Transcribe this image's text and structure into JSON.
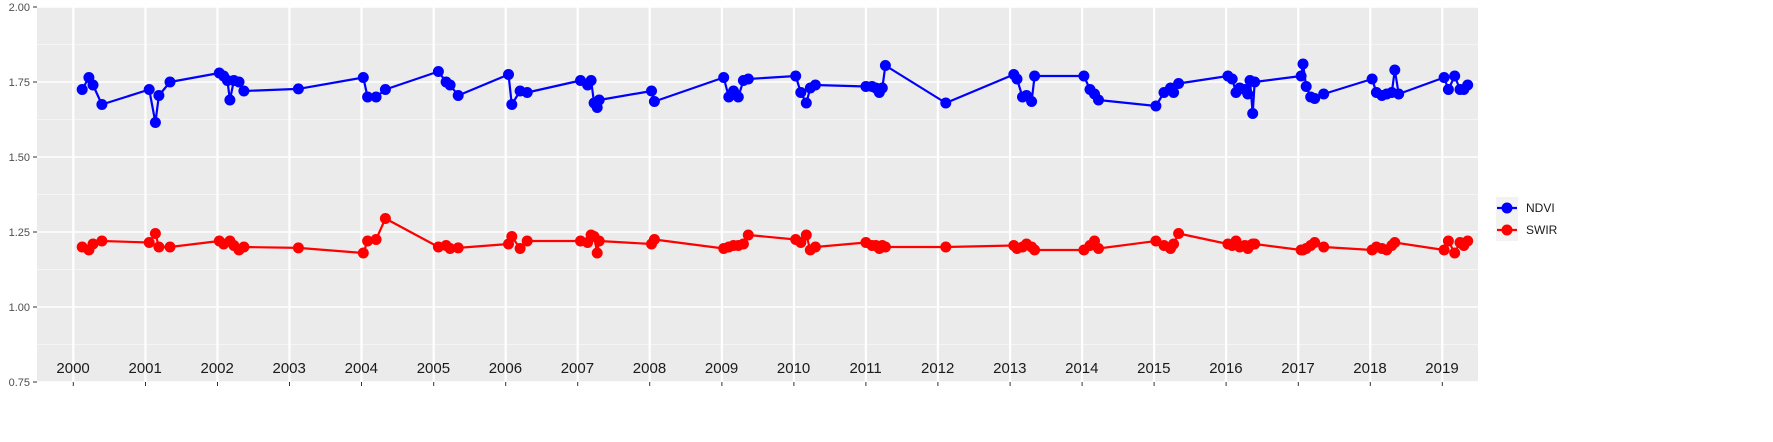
{
  "chart_data": {
    "type": "line",
    "x_axis": {
      "type": "time",
      "range": [
        "1999-07-01",
        "2019-07-01"
      ],
      "tick_labels_shown": false
    },
    "year_labels": [
      "2000",
      "2001",
      "2002",
      "2003",
      "2004",
      "2005",
      "2006",
      "2007",
      "2008",
      "2009",
      "2010",
      "2011",
      "2012",
      "2013",
      "2014",
      "2015",
      "2016",
      "2017",
      "2018",
      "2019"
    ],
    "y_axis": {
      "ylim": [
        0.75,
        2.0
      ],
      "ticks": [
        0.75,
        1.0,
        1.25,
        1.5,
        1.75,
        2.0
      ],
      "tick_labels": [
        "0.75",
        "1.00",
        "1.25",
        "1.50",
        "1.75",
        "2.00"
      ]
    },
    "grid": true,
    "background": "#ebebeb",
    "legend": {
      "position": "right",
      "entries": [
        "NDVI",
        "SWIR"
      ]
    },
    "series": [
      {
        "name": "NDVI",
        "color": "#0000ff",
        "points": [
          {
            "x": "2000-02-15",
            "y": 1.725
          },
          {
            "x": "2000-03-20",
            "y": 1.765
          },
          {
            "x": "2000-04-10",
            "y": 1.74
          },
          {
            "x": "2000-05-25",
            "y": 1.675
          },
          {
            "x": "2001-01-20",
            "y": 1.725
          },
          {
            "x": "2001-02-20",
            "y": 1.615
          },
          {
            "x": "2001-03-10",
            "y": 1.705
          },
          {
            "x": "2001-05-05",
            "y": 1.75
          },
          {
            "x": "2002-01-10",
            "y": 1.78
          },
          {
            "x": "2002-02-01",
            "y": 1.77
          },
          {
            "x": "2002-02-20",
            "y": 1.755
          },
          {
            "x": "2002-03-05",
            "y": 1.69
          },
          {
            "x": "2002-03-25",
            "y": 1.755
          },
          {
            "x": "2002-04-20",
            "y": 1.75
          },
          {
            "x": "2002-05-15",
            "y": 1.72
          },
          {
            "x": "2003-02-15",
            "y": 1.727
          },
          {
            "x": "2004-01-10",
            "y": 1.765
          },
          {
            "x": "2004-02-01",
            "y": 1.7
          },
          {
            "x": "2004-03-15",
            "y": 1.7
          },
          {
            "x": "2004-05-01",
            "y": 1.725
          },
          {
            "x": "2005-01-25",
            "y": 1.785
          },
          {
            "x": "2005-03-05",
            "y": 1.75
          },
          {
            "x": "2005-03-25",
            "y": 1.74
          },
          {
            "x": "2005-05-05",
            "y": 1.705
          },
          {
            "x": "2006-01-15",
            "y": 1.775
          },
          {
            "x": "2006-02-01",
            "y": 1.675
          },
          {
            "x": "2006-03-15",
            "y": 1.72
          },
          {
            "x": "2006-04-20",
            "y": 1.715
          },
          {
            "x": "2007-01-15",
            "y": 1.755
          },
          {
            "x": "2007-02-20",
            "y": 1.74
          },
          {
            "x": "2007-03-10",
            "y": 1.755
          },
          {
            "x": "2007-03-25",
            "y": 1.68
          },
          {
            "x": "2007-04-10",
            "y": 1.665
          },
          {
            "x": "2007-04-20",
            "y": 1.69
          },
          {
            "x": "2008-01-10",
            "y": 1.72
          },
          {
            "x": "2008-01-25",
            "y": 1.685
          },
          {
            "x": "2009-01-10",
            "y": 1.765
          },
          {
            "x": "2009-02-05",
            "y": 1.7
          },
          {
            "x": "2009-03-01",
            "y": 1.72
          },
          {
            "x": "2009-03-25",
            "y": 1.7
          },
          {
            "x": "2009-04-20",
            "y": 1.755
          },
          {
            "x": "2009-05-15",
            "y": 1.76
          },
          {
            "x": "2010-01-10",
            "y": 1.77
          },
          {
            "x": "2010-02-05",
            "y": 1.715
          },
          {
            "x": "2010-03-05",
            "y": 1.68
          },
          {
            "x": "2010-03-25",
            "y": 1.73
          },
          {
            "x": "2010-04-20",
            "y": 1.74
          },
          {
            "x": "2011-01-01",
            "y": 1.735
          },
          {
            "x": "2011-02-01",
            "y": 1.735
          },
          {
            "x": "2011-02-20",
            "y": 1.73
          },
          {
            "x": "2011-03-10",
            "y": 1.715
          },
          {
            "x": "2011-03-25",
            "y": 1.73
          },
          {
            "x": "2011-04-10",
            "y": 1.805
          },
          {
            "x": "2012-02-10",
            "y": 1.68
          },
          {
            "x": "2013-01-20",
            "y": 1.775
          },
          {
            "x": "2013-02-05",
            "y": 1.76
          },
          {
            "x": "2013-03-05",
            "y": 1.7
          },
          {
            "x": "2013-03-25",
            "y": 1.705
          },
          {
            "x": "2013-04-20",
            "y": 1.685
          },
          {
            "x": "2013-05-05",
            "y": 1.77
          },
          {
            "x": "2014-01-10",
            "y": 1.77
          },
          {
            "x": "2014-02-10",
            "y": 1.725
          },
          {
            "x": "2014-03-05",
            "y": 1.71
          },
          {
            "x": "2014-03-25",
            "y": 1.69
          },
          {
            "x": "2015-01-10",
            "y": 1.67
          },
          {
            "x": "2015-02-20",
            "y": 1.715
          },
          {
            "x": "2015-03-25",
            "y": 1.73
          },
          {
            "x": "2015-04-10",
            "y": 1.715
          },
          {
            "x": "2015-05-05",
            "y": 1.745
          },
          {
            "x": "2016-01-10",
            "y": 1.77
          },
          {
            "x": "2016-02-01",
            "y": 1.76
          },
          {
            "x": "2016-02-20",
            "y": 1.715
          },
          {
            "x": "2016-03-10",
            "y": 1.73
          },
          {
            "x": "2016-04-05",
            "y": 1.725
          },
          {
            "x": "2016-04-20",
            "y": 1.71
          },
          {
            "x": "2016-05-01",
            "y": 1.755
          },
          {
            "x": "2016-05-15",
            "y": 1.645
          },
          {
            "x": "2016-05-25",
            "y": 1.75
          },
          {
            "x": "2017-01-15",
            "y": 1.77
          },
          {
            "x": "2017-01-25",
            "y": 1.81
          },
          {
            "x": "2017-02-10",
            "y": 1.735
          },
          {
            "x": "2017-03-05",
            "y": 1.7
          },
          {
            "x": "2017-03-25",
            "y": 1.695
          },
          {
            "x": "2017-05-10",
            "y": 1.71
          },
          {
            "x": "2018-01-10",
            "y": 1.76
          },
          {
            "x": "2018-02-01",
            "y": 1.715
          },
          {
            "x": "2018-03-01",
            "y": 1.705
          },
          {
            "x": "2018-03-25",
            "y": 1.71
          },
          {
            "x": "2018-04-20",
            "y": 1.715
          },
          {
            "x": "2018-05-05",
            "y": 1.79
          },
          {
            "x": "2018-05-25",
            "y": 1.71
          },
          {
            "x": "2019-01-10",
            "y": 1.765
          },
          {
            "x": "2019-02-01",
            "y": 1.725
          },
          {
            "x": "2019-03-05",
            "y": 1.77
          },
          {
            "x": "2019-04-01",
            "y": 1.725
          },
          {
            "x": "2019-04-20",
            "y": 1.725
          },
          {
            "x": "2019-05-10",
            "y": 1.74
          }
        ]
      },
      {
        "name": "SWIR",
        "color": "#ff0000",
        "points": [
          {
            "x": "2000-02-15",
            "y": 1.2
          },
          {
            "x": "2000-03-20",
            "y": 1.19
          },
          {
            "x": "2000-04-10",
            "y": 1.21
          },
          {
            "x": "2000-05-25",
            "y": 1.22
          },
          {
            "x": "2001-01-20",
            "y": 1.215
          },
          {
            "x": "2001-02-20",
            "y": 1.245
          },
          {
            "x": "2001-03-10",
            "y": 1.2
          },
          {
            "x": "2001-05-05",
            "y": 1.2
          },
          {
            "x": "2002-01-10",
            "y": 1.22
          },
          {
            "x": "2002-02-01",
            "y": 1.21
          },
          {
            "x": "2002-03-05",
            "y": 1.22
          },
          {
            "x": "2002-03-25",
            "y": 1.205
          },
          {
            "x": "2002-04-20",
            "y": 1.19
          },
          {
            "x": "2002-05-15",
            "y": 1.2
          },
          {
            "x": "2003-02-15",
            "y": 1.197
          },
          {
            "x": "2004-01-10",
            "y": 1.18
          },
          {
            "x": "2004-02-01",
            "y": 1.22
          },
          {
            "x": "2004-03-15",
            "y": 1.225
          },
          {
            "x": "2004-05-01",
            "y": 1.295
          },
          {
            "x": "2005-01-25",
            "y": 1.2
          },
          {
            "x": "2005-03-05",
            "y": 1.205
          },
          {
            "x": "2005-03-25",
            "y": 1.195
          },
          {
            "x": "2005-05-05",
            "y": 1.197
          },
          {
            "x": "2006-01-15",
            "y": 1.21
          },
          {
            "x": "2006-02-01",
            "y": 1.235
          },
          {
            "x": "2006-03-15",
            "y": 1.195
          },
          {
            "x": "2006-04-20",
            "y": 1.22
          },
          {
            "x": "2007-01-15",
            "y": 1.22
          },
          {
            "x": "2007-02-20",
            "y": 1.215
          },
          {
            "x": "2007-03-10",
            "y": 1.24
          },
          {
            "x": "2007-03-25",
            "y": 1.235
          },
          {
            "x": "2007-04-10",
            "y": 1.18
          },
          {
            "x": "2007-04-20",
            "y": 1.22
          },
          {
            "x": "2008-01-10",
            "y": 1.21
          },
          {
            "x": "2008-01-25",
            "y": 1.225
          },
          {
            "x": "2009-01-10",
            "y": 1.195
          },
          {
            "x": "2009-02-05",
            "y": 1.2
          },
          {
            "x": "2009-03-01",
            "y": 1.205
          },
          {
            "x": "2009-03-25",
            "y": 1.205
          },
          {
            "x": "2009-04-20",
            "y": 1.21
          },
          {
            "x": "2009-05-15",
            "y": 1.24
          },
          {
            "x": "2010-01-10",
            "y": 1.225
          },
          {
            "x": "2010-02-05",
            "y": 1.215
          },
          {
            "x": "2010-03-05",
            "y": 1.24
          },
          {
            "x": "2010-03-25",
            "y": 1.19
          },
          {
            "x": "2010-04-20",
            "y": 1.2
          },
          {
            "x": "2011-01-01",
            "y": 1.215
          },
          {
            "x": "2011-02-01",
            "y": 1.205
          },
          {
            "x": "2011-02-20",
            "y": 1.205
          },
          {
            "x": "2011-03-10",
            "y": 1.195
          },
          {
            "x": "2011-03-25",
            "y": 1.205
          },
          {
            "x": "2011-04-10",
            "y": 1.2
          },
          {
            "x": "2012-02-10",
            "y": 1.2
          },
          {
            "x": "2013-01-20",
            "y": 1.205
          },
          {
            "x": "2013-02-05",
            "y": 1.195
          },
          {
            "x": "2013-03-05",
            "y": 1.2
          },
          {
            "x": "2013-03-25",
            "y": 1.21
          },
          {
            "x": "2013-04-20",
            "y": 1.2
          },
          {
            "x": "2013-05-05",
            "y": 1.19
          },
          {
            "x": "2014-01-10",
            "y": 1.19
          },
          {
            "x": "2014-02-10",
            "y": 1.205
          },
          {
            "x": "2014-03-05",
            "y": 1.22
          },
          {
            "x": "2014-03-25",
            "y": 1.195
          },
          {
            "x": "2015-01-10",
            "y": 1.22
          },
          {
            "x": "2015-02-20",
            "y": 1.205
          },
          {
            "x": "2015-03-25",
            "y": 1.195
          },
          {
            "x": "2015-04-10",
            "y": 1.21
          },
          {
            "x": "2015-05-05",
            "y": 1.245
          },
          {
            "x": "2016-01-10",
            "y": 1.21
          },
          {
            "x": "2016-02-01",
            "y": 1.205
          },
          {
            "x": "2016-02-20",
            "y": 1.22
          },
          {
            "x": "2016-03-10",
            "y": 1.2
          },
          {
            "x": "2016-04-05",
            "y": 1.205
          },
          {
            "x": "2016-04-20",
            "y": 1.195
          },
          {
            "x": "2016-05-01",
            "y": 1.205
          },
          {
            "x": "2016-05-15",
            "y": 1.21
          },
          {
            "x": "2016-05-25",
            "y": 1.21
          },
          {
            "x": "2017-01-15",
            "y": 1.19
          },
          {
            "x": "2017-01-25",
            "y": 1.19
          },
          {
            "x": "2017-02-10",
            "y": 1.195
          },
          {
            "x": "2017-03-05",
            "y": 1.205
          },
          {
            "x": "2017-03-25",
            "y": 1.215
          },
          {
            "x": "2017-05-10",
            "y": 1.2
          },
          {
            "x": "2018-01-10",
            "y": 1.19
          },
          {
            "x": "2018-02-01",
            "y": 1.2
          },
          {
            "x": "2018-03-01",
            "y": 1.195
          },
          {
            "x": "2018-03-25",
            "y": 1.19
          },
          {
            "x": "2018-04-20",
            "y": 1.205
          },
          {
            "x": "2018-05-05",
            "y": 1.215
          },
          {
            "x": "2019-01-10",
            "y": 1.19
          },
          {
            "x": "2019-02-01",
            "y": 1.22
          },
          {
            "x": "2019-03-05",
            "y": 1.18
          },
          {
            "x": "2019-04-01",
            "y": 1.215
          },
          {
            "x": "2019-04-20",
            "y": 1.205
          },
          {
            "x": "2019-05-10",
            "y": 1.22
          }
        ]
      }
    ]
  }
}
